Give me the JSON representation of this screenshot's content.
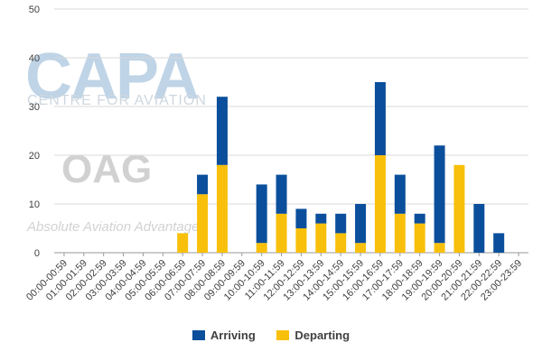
{
  "watermark": {
    "capa": "CAPA",
    "capa_sub": "CENTRE FOR AVIATION",
    "oag": "OAG",
    "oag_sub": "Absolute Aviation Advantage"
  },
  "colors": {
    "arriving": "#0b4f9c",
    "departing": "#f8c00a"
  },
  "chart_data": {
    "type": "bar",
    "stacked": true,
    "categories": [
      "00:00-00:59",
      "01:00-01:59",
      "02:00-02:59",
      "03:00-03:59",
      "04:00-04:59",
      "05:00-05:59",
      "06:00-06:59",
      "07:00-07:59",
      "08:00-08:59",
      "09:00-09:59",
      "10:00-10:59",
      "11:00-11:59",
      "12:00-12:59",
      "13:00-13:59",
      "14:00-14:59",
      "15:00-15:59",
      "16:00-16:59",
      "17:00-17:59",
      "18:00-18:59",
      "19:00-19:59",
      "20:00-20:59",
      "21:00-21:59",
      "22:00-22:59",
      "23:00-23:59"
    ],
    "series": [
      {
        "name": "Departing",
        "color": "#f8c00a",
        "values": [
          0,
          0,
          0,
          0,
          0,
          0,
          4,
          12,
          18,
          0,
          2,
          8,
          5,
          6,
          4,
          2,
          20,
          8,
          6,
          2,
          18,
          0,
          0,
          0
        ]
      },
      {
        "name": "Arriving",
        "color": "#0b4f9c",
        "values": [
          0,
          0,
          0,
          0,
          0,
          0,
          0,
          4,
          14,
          0,
          12,
          8,
          4,
          2,
          4,
          8,
          15,
          8,
          2,
          20,
          0,
          10,
          4,
          0
        ]
      }
    ],
    "yticks": [
      0,
      10,
      20,
      30,
      40,
      50
    ],
    "ylim": [
      0,
      50
    ],
    "grid": true,
    "legend": [
      "Arriving",
      "Departing"
    ],
    "legend_position": "bottom"
  }
}
